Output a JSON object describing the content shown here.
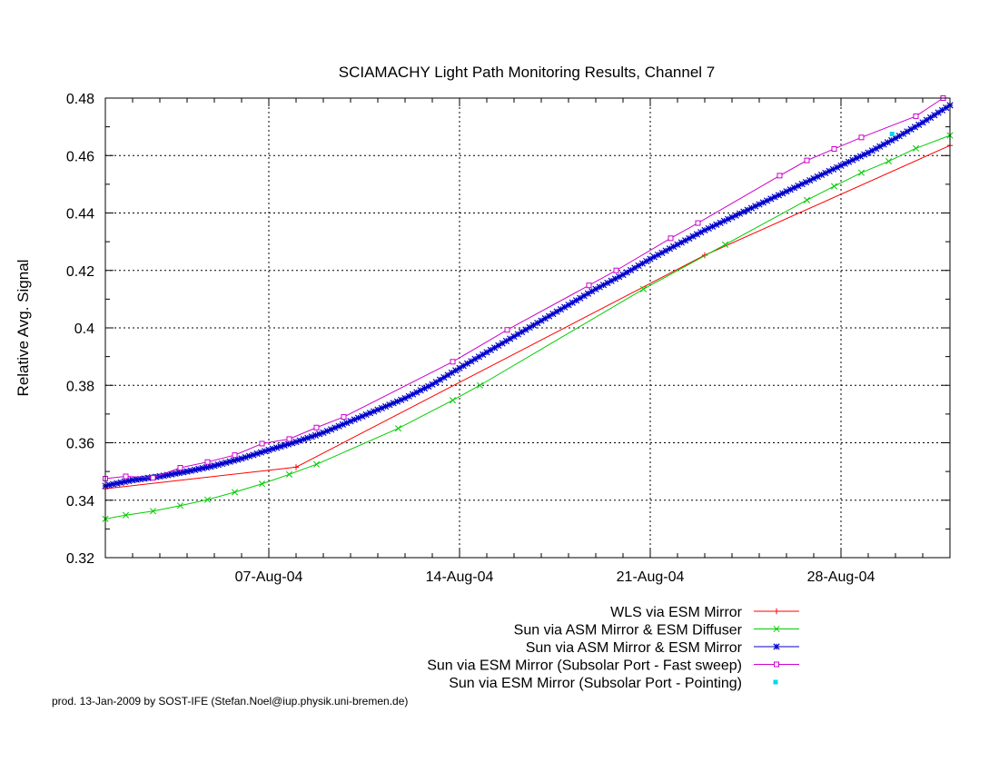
{
  "chart_data": {
    "type": "line",
    "title": "SCIAMACHY Light Path Monitoring Results, Channel 7",
    "xlabel": "",
    "ylabel": "Relative Avg. Signal",
    "x_unit": "date (2004)",
    "xlim": [
      "2004-08-01",
      "2004-09-01"
    ],
    "ylim": [
      0.32,
      0.48
    ],
    "grid": true,
    "legend_position": "bottom-right, below plot",
    "x_ticks": [
      {
        "date": "2004-08-07",
        "label": "07-Aug-04"
      },
      {
        "date": "2004-08-14",
        "label": "14-Aug-04"
      },
      {
        "date": "2004-08-21",
        "label": "21-Aug-04"
      },
      {
        "date": "2004-08-28",
        "label": "28-Aug-04"
      }
    ],
    "y_ticks": [
      {
        "value": 0.32,
        "label": "0.32"
      },
      {
        "value": 0.34,
        "label": "0.34"
      },
      {
        "value": 0.36,
        "label": "0.36"
      },
      {
        "value": 0.38,
        "label": "0.38"
      },
      {
        "value": 0.4,
        "label": "0.4"
      },
      {
        "value": 0.42,
        "label": "0.42"
      },
      {
        "value": 0.44,
        "label": "0.44"
      },
      {
        "value": 0.46,
        "label": "0.46"
      },
      {
        "value": 0.48,
        "label": "0.48"
      }
    ],
    "series": [
      {
        "name": "WLS via ESM Mirror",
        "color": "#ff0000",
        "marker": "plus",
        "points": [
          [
            "2004-08-01T00:00",
            0.344
          ],
          [
            "2004-08-08T00:00",
            0.3515
          ],
          [
            "2004-08-23T00:00",
            0.4253
          ],
          [
            "2004-09-01T00:00",
            0.4635
          ]
        ]
      },
      {
        "name": "Sun via ASM Mirror & ESM Diffuser",
        "color": "#00cc00",
        "marker": "cross",
        "points": [
          [
            "2004-08-01T00:00",
            0.3335
          ],
          [
            "2004-08-01T18:00",
            0.3348
          ],
          [
            "2004-08-02T18:00",
            0.3362
          ],
          [
            "2004-08-03T18:00",
            0.3381
          ],
          [
            "2004-08-04T18:00",
            0.3402
          ],
          [
            "2004-08-05T18:00",
            0.3428
          ],
          [
            "2004-08-06T18:00",
            0.3457
          ],
          [
            "2004-08-07T18:00",
            0.349
          ],
          [
            "2004-08-08T18:00",
            0.3525
          ],
          [
            "2004-08-11T18:00",
            0.365
          ],
          [
            "2004-08-13T18:00",
            0.3748
          ],
          [
            "2004-08-14T18:00",
            0.38
          ],
          [
            "2004-08-20T18:00",
            0.4135
          ],
          [
            "2004-08-23T18:00",
            0.429
          ],
          [
            "2004-08-26T18:00",
            0.4445
          ],
          [
            "2004-08-27T18:00",
            0.4493
          ],
          [
            "2004-08-28T18:00",
            0.454
          ],
          [
            "2004-08-29T18:00",
            0.458
          ],
          [
            "2004-08-30T18:00",
            0.4625
          ],
          [
            "2004-09-01T00:00",
            0.467
          ]
        ]
      },
      {
        "name": "Sun via ASM Mirror & ESM Mirror",
        "color": "#0000cc",
        "marker": "star",
        "dense_markers": true,
        "points": [
          [
            "2004-08-01T00:00",
            0.345
          ],
          [
            "2004-08-02T00:00",
            0.347
          ],
          [
            "2004-08-03T00:00",
            0.3483
          ],
          [
            "2004-08-04T00:00",
            0.35
          ],
          [
            "2004-08-05T00:00",
            0.352
          ],
          [
            "2004-08-06T00:00",
            0.3545
          ],
          [
            "2004-08-07T00:00",
            0.3575
          ],
          [
            "2004-08-08T00:00",
            0.3603
          ],
          [
            "2004-08-09T00:00",
            0.3635
          ],
          [
            "2004-08-10T00:00",
            0.3675
          ],
          [
            "2004-08-11T00:00",
            0.3715
          ],
          [
            "2004-08-12T00:00",
            0.3755
          ],
          [
            "2004-08-13T00:00",
            0.3803
          ],
          [
            "2004-08-14T00:00",
            0.386
          ],
          [
            "2004-08-15T00:00",
            0.3915
          ],
          [
            "2004-08-16T00:00",
            0.397
          ],
          [
            "2004-08-17T00:00",
            0.4025
          ],
          [
            "2004-08-18T00:00",
            0.408
          ],
          [
            "2004-08-19T00:00",
            0.4135
          ],
          [
            "2004-08-20T00:00",
            0.4185
          ],
          [
            "2004-08-21T00:00",
            0.424
          ],
          [
            "2004-08-22T00:00",
            0.429
          ],
          [
            "2004-08-23T00:00",
            0.434
          ],
          [
            "2004-08-24T00:00",
            0.4385
          ],
          [
            "2004-08-25T00:00",
            0.443
          ],
          [
            "2004-08-26T00:00",
            0.4475
          ],
          [
            "2004-08-27T00:00",
            0.452
          ],
          [
            "2004-08-28T00:00",
            0.4565
          ],
          [
            "2004-08-29T00:00",
            0.461
          ],
          [
            "2004-08-30T00:00",
            0.466
          ],
          [
            "2004-08-31T00:00",
            0.4715
          ],
          [
            "2004-09-01T00:00",
            0.4775
          ]
        ]
      },
      {
        "name": "Sun via ESM Mirror (Subsolar Port - Fast sweep)",
        "color": "#cc00cc",
        "marker": "square",
        "points": [
          [
            "2004-08-01T00:00",
            0.3475
          ],
          [
            "2004-08-01T18:00",
            0.3483
          ],
          [
            "2004-08-02T18:00",
            0.3478
          ],
          [
            "2004-08-03T18:00",
            0.3513
          ],
          [
            "2004-08-04T18:00",
            0.3533
          ],
          [
            "2004-08-05T18:00",
            0.3557
          ],
          [
            "2004-08-06T18:00",
            0.3597
          ],
          [
            "2004-08-07T18:00",
            0.3613
          ],
          [
            "2004-08-08T18:00",
            0.3653
          ],
          [
            "2004-08-09T18:00",
            0.369
          ],
          [
            "2004-08-13T18:00",
            0.3882
          ],
          [
            "2004-08-15T18:00",
            0.3993
          ],
          [
            "2004-08-18T18:00",
            0.4148
          ],
          [
            "2004-08-19T18:00",
            0.42
          ],
          [
            "2004-08-21T18:00",
            0.4312
          ],
          [
            "2004-08-22T18:00",
            0.4365
          ],
          [
            "2004-08-25T18:00",
            0.453
          ],
          [
            "2004-08-26T18:00",
            0.4583
          ],
          [
            "2004-08-27T18:00",
            0.4623
          ],
          [
            "2004-08-28T18:00",
            0.4663
          ],
          [
            "2004-08-30T18:00",
            0.4737
          ],
          [
            "2004-08-31T18:00",
            0.48
          ]
        ]
      },
      {
        "name": "Sun via ESM Mirror (Subsolar Port - Pointing)",
        "color": "#00d8e8",
        "marker": "dot",
        "points": [
          [
            "2004-08-29T21:00",
            0.4675
          ]
        ]
      }
    ]
  },
  "footer": "prod. 13-Jan-2009 by SOST-IFE (Stefan.Noel@iup.physik.uni-bremen.de)"
}
